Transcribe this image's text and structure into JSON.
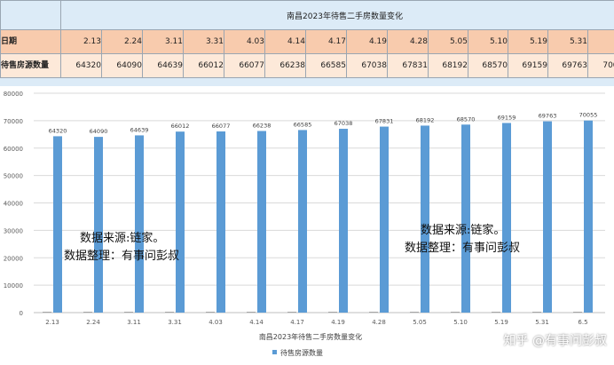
{
  "table": {
    "title": "南昌2023年待售二手房数量变化",
    "row_labels": {
      "date": "日期",
      "count": "待售房源数量"
    },
    "dates": [
      "2.13",
      "2.24",
      "3.11",
      "3.31",
      "4.03",
      "4.14",
      "4.17",
      "4.19",
      "4.28",
      "5.05",
      "5.10",
      "5.19",
      "5.31",
      "6.5"
    ],
    "counts": [
      "64320",
      "64090",
      "64639",
      "66012",
      "66077",
      "66238",
      "66585",
      "67038",
      "67831",
      "68192",
      "68570",
      "69159",
      "69763",
      "70055"
    ]
  },
  "chart_data": {
    "type": "bar",
    "title": "南昌2023年待售二手房数量变化",
    "categories": [
      "2.13",
      "2.24",
      "3.11",
      "3.31",
      "4.03",
      "4.14",
      "4.17",
      "4.19",
      "4.28",
      "5.05",
      "5.10",
      "5.19",
      "5.31",
      "6.5"
    ],
    "series": [
      {
        "name": "待售房源数量",
        "values": [
          64320,
          64090,
          64639,
          66012,
          66077,
          66238,
          66585,
          67038,
          67831,
          68192,
          68570,
          69159,
          69763,
          70055
        ],
        "color": "#5b9bd5"
      }
    ],
    "ylim": [
      0,
      80000
    ],
    "yticks": [
      0,
      10000,
      20000,
      30000,
      40000,
      50000,
      60000,
      70000,
      80000
    ],
    "grid": true,
    "legend": "bottom",
    "data_labels": true
  },
  "watermarks": [
    {
      "line1": "数据来源:链家。",
      "line2": "数据整理：有事问彭叔"
    },
    {
      "line1": "数据来源:链家。",
      "line2": "数据整理：有事问彭叔"
    }
  ],
  "site_tag": "知乎 @有事问彭叔"
}
